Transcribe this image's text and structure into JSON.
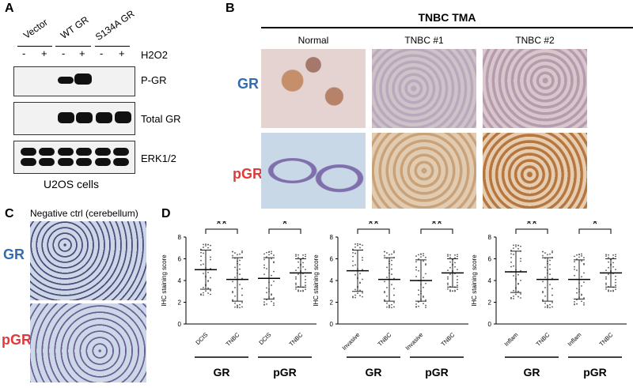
{
  "panels": {
    "A": "A",
    "B": "B",
    "C": "C",
    "D": "D"
  },
  "panelA": {
    "groups": [
      "Vector",
      "WT GR",
      "S134A GR"
    ],
    "treatment_signs": [
      "-",
      "+",
      "-",
      "+",
      "-",
      "+"
    ],
    "treatment_label": "H2O2",
    "blots": [
      "P-GR",
      "Total GR",
      "ERK1/2"
    ],
    "cell_line": "U2OS cells"
  },
  "panelB": {
    "title": "TNBC TMA",
    "columns": [
      "Normal",
      "TNBC #1",
      "TNBC #2"
    ],
    "rows": [
      "GR",
      "pGR"
    ]
  },
  "panelC": {
    "title": "Negative ctrl (cerebellum)",
    "rows": [
      "GR",
      "pGR"
    ]
  },
  "panelD": {
    "ylabel": "IHC staining score",
    "yticks": [
      "0",
      "2",
      "4",
      "6",
      "8"
    ],
    "groups": [
      "GR",
      "pGR"
    ],
    "subplots": [
      {
        "categories": [
          "DCIS",
          "TNBC",
          "DCIS",
          "TNBC"
        ],
        "means": [
          5.0,
          4.1,
          4.2,
          4.7
        ],
        "sd": [
          1.8,
          2.0,
          1.9,
          1.3
        ],
        "sig": [
          "**",
          "*"
        ]
      },
      {
        "categories": [
          "Invasive",
          "TNBC",
          "Invasive",
          "TNBC"
        ],
        "means": [
          4.9,
          4.1,
          4.0,
          4.7
        ],
        "sd": [
          1.9,
          2.0,
          1.9,
          1.3
        ],
        "sig": [
          "**",
          "**"
        ]
      },
      {
        "categories": [
          "Inflam",
          "TNBC",
          "Inflam",
          "TNBC"
        ],
        "means": [
          4.8,
          4.1,
          4.1,
          4.7
        ],
        "sd": [
          1.9,
          2.0,
          1.8,
          1.3
        ],
        "sig": [
          "**",
          "*"
        ]
      }
    ]
  },
  "chart_data": [
    {
      "type": "scatter",
      "categories": [
        "DCIS",
        "TNBC",
        "DCIS",
        "TNBC"
      ],
      "series": [
        {
          "values": [
            5.0,
            4.1,
            4.2,
            4.7
          ]
        }
      ],
      "ylabel": "IHC staining score",
      "ylim": [
        0,
        8
      ]
    },
    {
      "type": "scatter",
      "categories": [
        "Invasive",
        "TNBC",
        "Invasive",
        "TNBC"
      ],
      "series": [
        {
          "values": [
            4.9,
            4.1,
            4.0,
            4.7
          ]
        }
      ],
      "ylabel": "IHC staining score",
      "ylim": [
        0,
        8
      ]
    },
    {
      "type": "scatter",
      "categories": [
        "Inflam",
        "TNBC",
        "Inflam",
        "TNBC"
      ],
      "series": [
        {
          "values": [
            4.8,
            4.1,
            4.1,
            4.7
          ]
        }
      ],
      "ylabel": "IHC staining score",
      "ylim": [
        0,
        8
      ]
    }
  ]
}
